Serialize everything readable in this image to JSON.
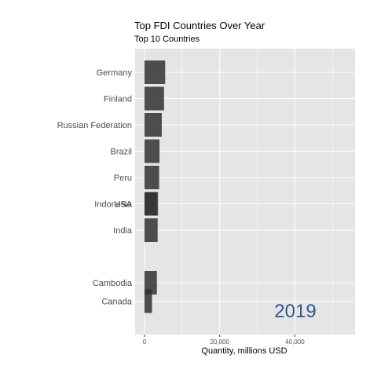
{
  "chart_data": {
    "type": "bar",
    "orientation": "horizontal",
    "title": "Top FDI Countries Over Year",
    "subtitle": "Top 10 Countries",
    "xlabel": "Quantity, millions USD",
    "ylabel": "",
    "xlim": [
      -2500,
      56000
    ],
    "x_ticks": [
      0,
      20000,
      40000
    ],
    "x_tick_labels": [
      "0",
      "20,000",
      "40,000"
    ],
    "grid": true,
    "year_label": "2019",
    "year_label_color": "#2e5a8a",
    "bar_color": "#333333",
    "panel_color": "#e5e5e5",
    "bars": [
      {
        "label": "Germany",
        "rank": 1,
        "value": 5500
      },
      {
        "label": "Finland",
        "rank": 2,
        "value": 5200
      },
      {
        "label": "Russian Federation",
        "rank": 3,
        "value": 4600
      },
      {
        "label": "Brazil",
        "rank": 4,
        "value": 4000
      },
      {
        "label": "Peru",
        "rank": 5,
        "value": 3900
      },
      {
        "label": "USA",
        "rank": 6,
        "value": 3600
      },
      {
        "label": "Indonesia",
        "rank": 6,
        "value": 3300
      },
      {
        "label": "India",
        "rank": 7,
        "value": 3500
      },
      {
        "label": "Cambodia",
        "rank": 9,
        "value": 3300
      },
      {
        "label": "Canada",
        "rank": 9.7,
        "value": 2000
      }
    ]
  }
}
